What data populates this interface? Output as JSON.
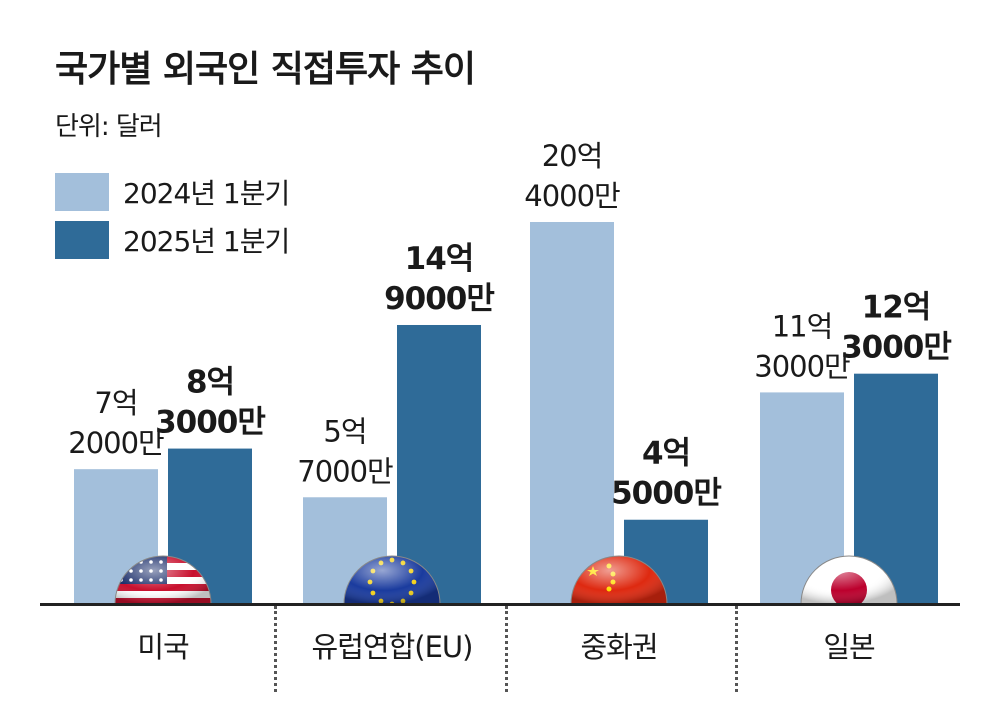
{
  "title": "국가별 외국인 직접투자 추이",
  "unit": "단위: 달러",
  "colors": {
    "y2024": "#a3bfdb",
    "y2025": "#2f6b98"
  },
  "chart_data": {
    "type": "bar",
    "title": "국가별 외국인 직접투자 추이",
    "ylabel": "단위: 달러",
    "categories": [
      "미국",
      "유럽연합(EU)",
      "중화권",
      "일본"
    ],
    "series": [
      {
        "name": "2024년 1분기",
        "values": [
          720000000,
          570000000,
          2040000000,
          1130000000
        ],
        "labels": [
          [
            "7억",
            "2000만"
          ],
          [
            "5억",
            "7000만"
          ],
          [
            "20억",
            "4000만"
          ],
          [
            "11억",
            "3000만"
          ]
        ]
      },
      {
        "name": "2025년 1분기",
        "values": [
          830000000,
          1490000000,
          450000000,
          1230000000
        ],
        "labels": [
          [
            "8억",
            "3000만"
          ],
          [
            "14억",
            "9000만"
          ],
          [
            "4억",
            "5000만"
          ],
          [
            "12억",
            "3000만"
          ]
        ]
      }
    ],
    "ylim": [
      0,
      2100000000
    ],
    "legend": "top-left",
    "grid": false
  },
  "flags": [
    "us-flag-icon",
    "eu-flag-icon",
    "china-flag-icon",
    "japan-flag-icon"
  ]
}
